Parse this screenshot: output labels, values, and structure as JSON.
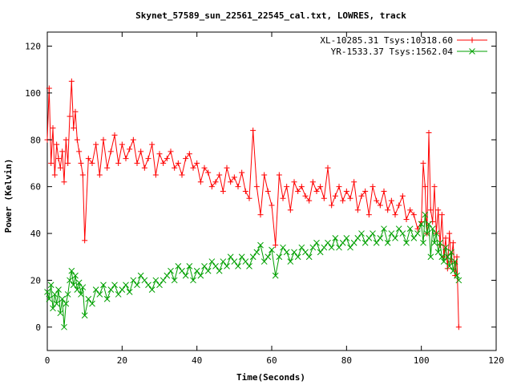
{
  "chart_data": {
    "type": "line",
    "title": "Skynet_57589_sun_22561_22545_cal.txt, LOWRES, track",
    "xlabel": "Time(Seconds)",
    "ylabel": "Power (Kelvin)",
    "xlim": [
      0,
      120
    ],
    "ylim": [
      -10,
      126
    ],
    "x_ticks": [
      0,
      20,
      40,
      60,
      80,
      100,
      120
    ],
    "y_ticks": [
      0,
      20,
      40,
      60,
      80,
      100,
      120
    ],
    "legend_position": "top-right",
    "grid": false,
    "series": [
      {
        "name": "XL-10285.31 Tsys:10318.60",
        "color": "#ff0000",
        "marker": "plus",
        "x": [
          0,
          0.5,
          1,
          1.5,
          2,
          2.5,
          3,
          3.5,
          4,
          4.5,
          5,
          5.5,
          6,
          6.5,
          7,
          7.5,
          8,
          8.5,
          9,
          9.5,
          10,
          11,
          12,
          13,
          14,
          15,
          16,
          17,
          18,
          19,
          20,
          21,
          22,
          23,
          24,
          25,
          26,
          27,
          28,
          29,
          30,
          31,
          32,
          33,
          34,
          35,
          36,
          37,
          38,
          39,
          40,
          41,
          42,
          43,
          44,
          45,
          46,
          47,
          48,
          49,
          50,
          51,
          52,
          53,
          54,
          55,
          56,
          57,
          58,
          59,
          60,
          61,
          62,
          63,
          64,
          65,
          66,
          67,
          68,
          69,
          70,
          71,
          72,
          73,
          74,
          75,
          76,
          77,
          78,
          79,
          80,
          81,
          82,
          83,
          84,
          85,
          86,
          87,
          88,
          89,
          90,
          91,
          92,
          93,
          94,
          95,
          96,
          97,
          98,
          99,
          100,
          100.5,
          101,
          101.5,
          102,
          102.5,
          103,
          103.5,
          104,
          104.5,
          105,
          105.5,
          106,
          106.5,
          107,
          107.5,
          108,
          108.5,
          109,
          109.5,
          110
        ],
        "y": [
          80,
          102,
          70,
          85,
          65,
          78,
          72,
          68,
          75,
          62,
          80,
          70,
          90,
          105,
          85,
          92,
          80,
          75,
          70,
          65,
          37,
          72,
          70,
          78,
          65,
          80,
          68,
          75,
          82,
          70,
          78,
          72,
          76,
          80,
          70,
          75,
          68,
          72,
          78,
          65,
          74,
          70,
          72,
          75,
          68,
          70,
          65,
          72,
          74,
          68,
          70,
          62,
          68,
          66,
          60,
          62,
          65,
          58,
          68,
          62,
          64,
          60,
          66,
          58,
          55,
          84,
          60,
          48,
          65,
          58,
          52,
          35,
          65,
          55,
          60,
          50,
          62,
          58,
          60,
          56,
          54,
          62,
          58,
          60,
          55,
          68,
          52,
          56,
          60,
          54,
          58,
          55,
          62,
          50,
          56,
          58,
          48,
          60,
          54,
          52,
          58,
          50,
          54,
          48,
          52,
          56,
          46,
          50,
          48,
          42,
          45,
          70,
          60,
          40,
          83,
          50,
          45,
          60,
          40,
          50,
          35,
          48,
          30,
          38,
          25,
          40,
          28,
          36,
          22,
          30,
          0
        ]
      },
      {
        "name": "YR-1533.37 Tsys:1562.04",
        "color": "#00a000",
        "marker": "cross",
        "x": [
          0,
          0.5,
          1,
          1.5,
          2,
          2.5,
          3,
          3.5,
          4,
          4.5,
          5,
          5.5,
          6,
          6.5,
          7,
          7.5,
          8,
          8.5,
          9,
          9.5,
          10,
          11,
          12,
          13,
          14,
          15,
          16,
          17,
          18,
          19,
          20,
          21,
          22,
          23,
          24,
          25,
          26,
          27,
          28,
          29,
          30,
          31,
          32,
          33,
          34,
          35,
          36,
          37,
          38,
          39,
          40,
          41,
          42,
          43,
          44,
          45,
          46,
          47,
          48,
          49,
          50,
          51,
          52,
          53,
          54,
          55,
          56,
          57,
          58,
          59,
          60,
          61,
          62,
          63,
          64,
          65,
          66,
          67,
          68,
          69,
          70,
          71,
          72,
          73,
          74,
          75,
          76,
          77,
          78,
          79,
          80,
          81,
          82,
          83,
          84,
          85,
          86,
          87,
          88,
          89,
          90,
          91,
          92,
          93,
          94,
          95,
          96,
          97,
          98,
          99,
          100,
          100.5,
          101,
          101.5,
          102,
          102.5,
          103,
          103.5,
          104,
          104.5,
          105,
          105.5,
          106,
          106.5,
          107,
          107.5,
          108,
          108.5,
          109,
          109.5,
          110
        ],
        "y": [
          15,
          12,
          18,
          8,
          14,
          10,
          16,
          6,
          12,
          0,
          10,
          14,
          20,
          24,
          18,
          22,
          16,
          19,
          14,
          17,
          5,
          12,
          10,
          16,
          14,
          18,
          12,
          16,
          18,
          14,
          16,
          18,
          15,
          20,
          18,
          22,
          20,
          18,
          16,
          20,
          18,
          20,
          22,
          24,
          20,
          26,
          24,
          22,
          26,
          20,
          24,
          22,
          26,
          24,
          28,
          26,
          24,
          28,
          26,
          30,
          28,
          26,
          30,
          28,
          26,
          30,
          32,
          35,
          28,
          30,
          33,
          22,
          30,
          34,
          32,
          28,
          32,
          30,
          34,
          32,
          30,
          34,
          36,
          32,
          34,
          36,
          34,
          38,
          34,
          36,
          38,
          34,
          36,
          38,
          40,
          36,
          38,
          40,
          36,
          38,
          42,
          36,
          40,
          38,
          42,
          40,
          36,
          42,
          38,
          40,
          44,
          36,
          48,
          40,
          44,
          30,
          42,
          36,
          40,
          32,
          36,
          30,
          28,
          34,
          30,
          26,
          32,
          24,
          28,
          22,
          20
        ]
      }
    ]
  }
}
